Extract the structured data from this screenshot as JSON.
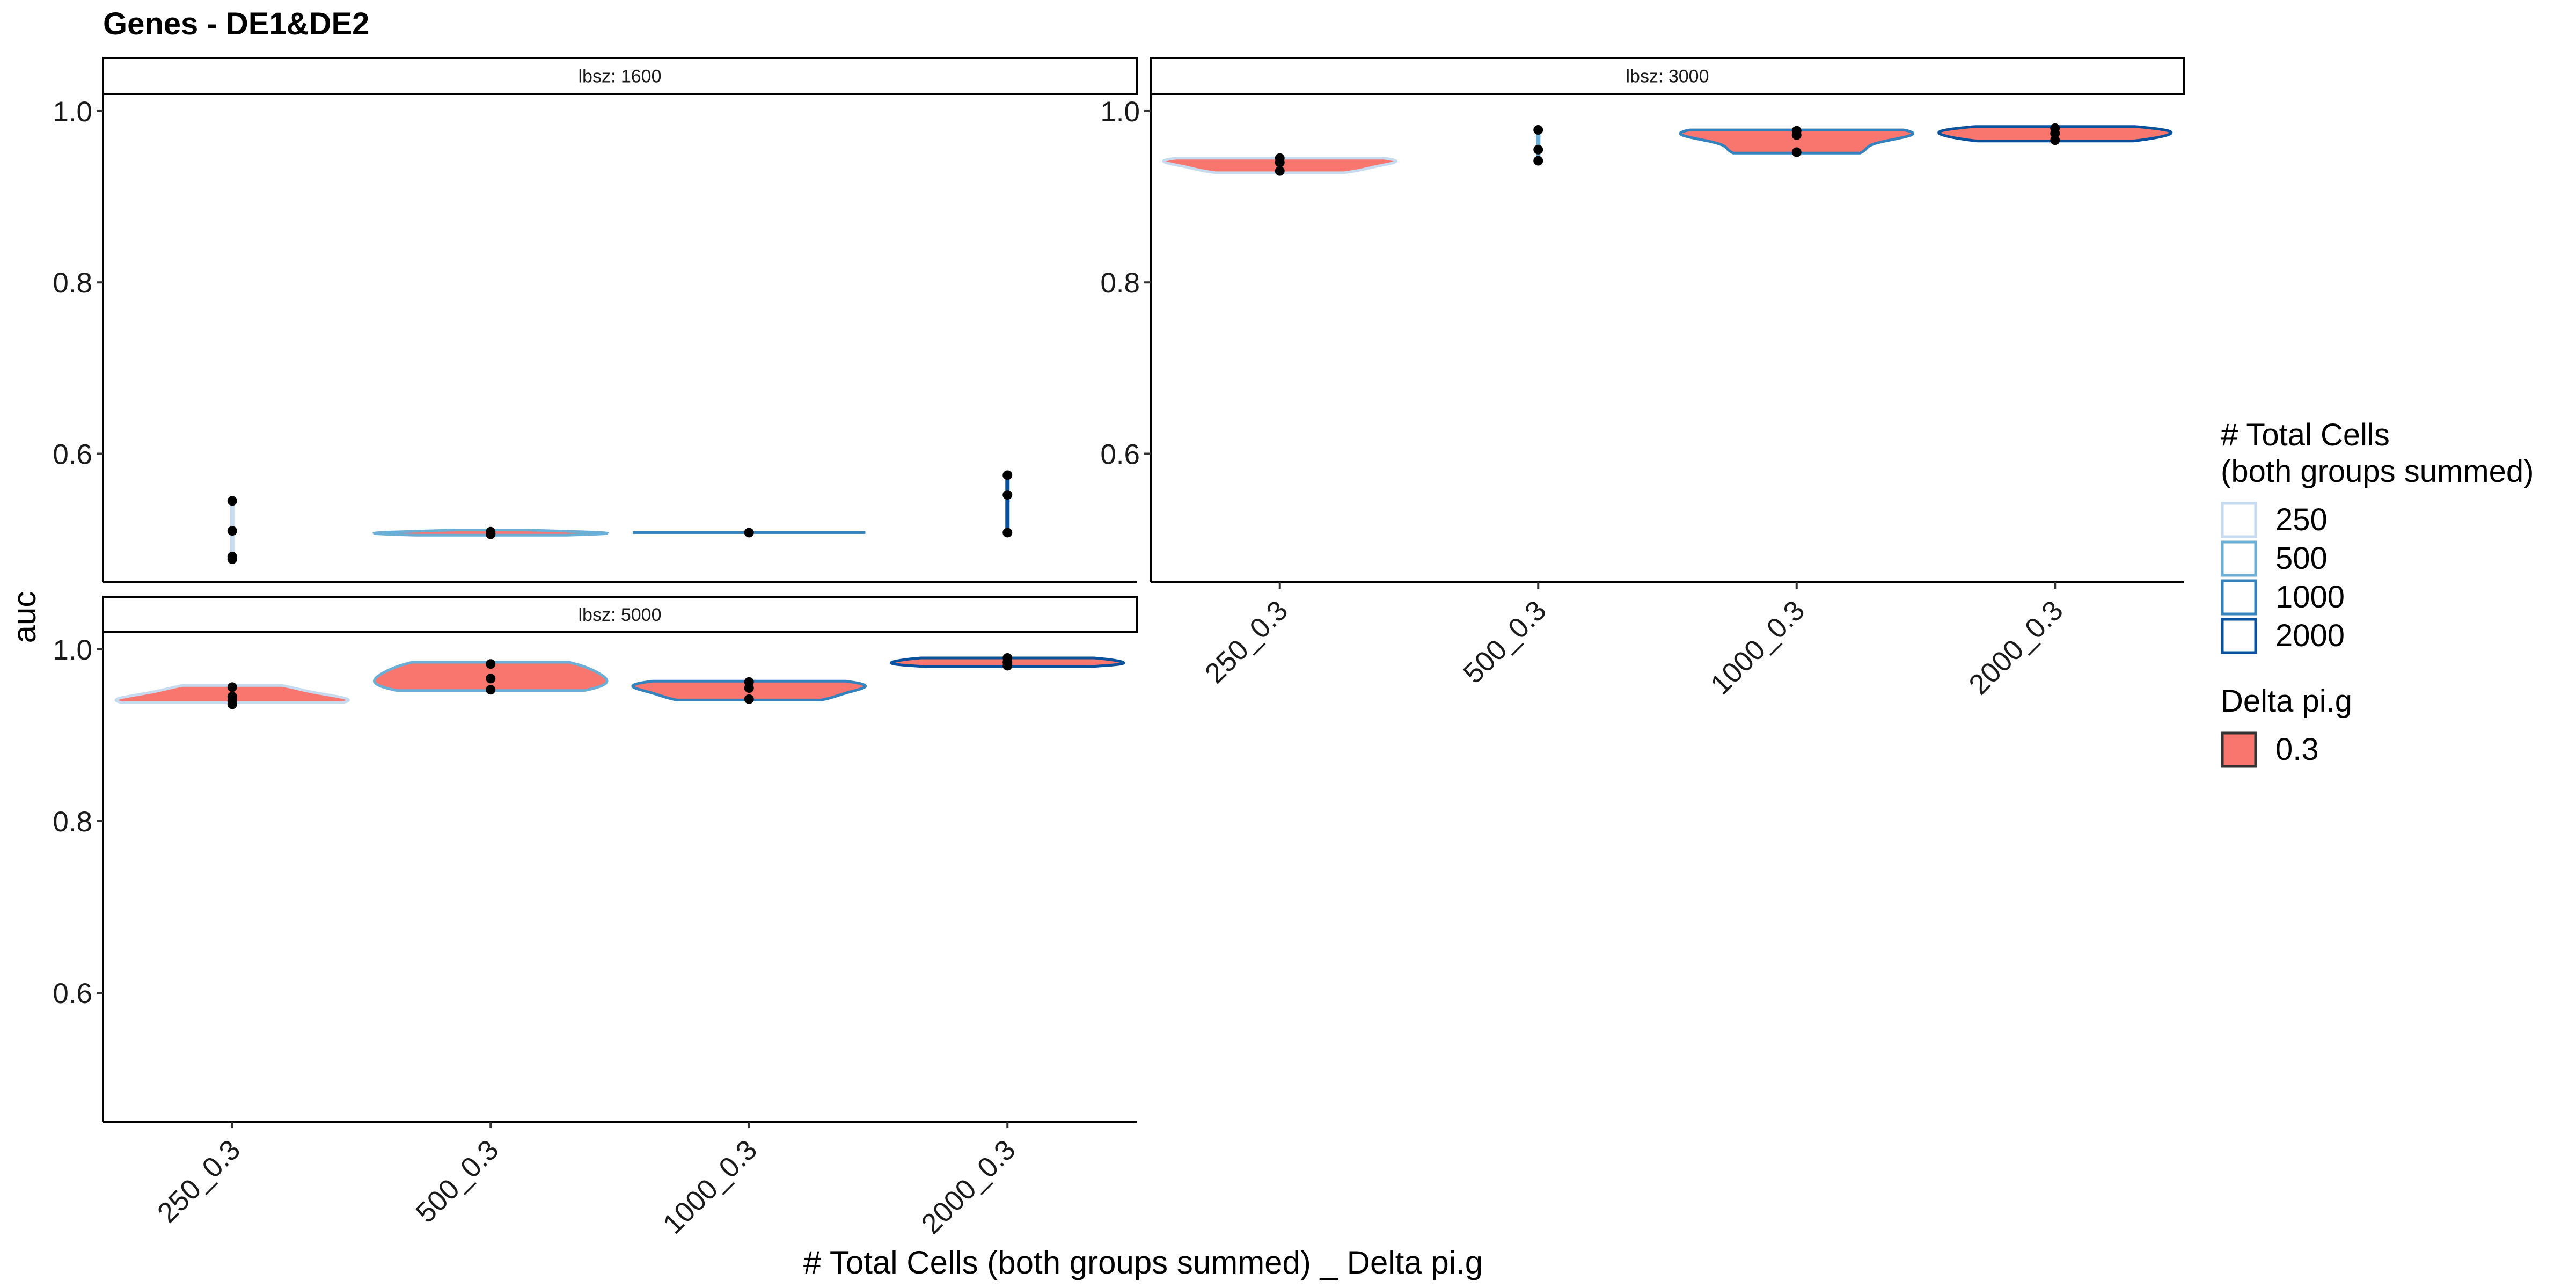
{
  "chart_data": {
    "type": "violin",
    "title": "Genes - DE1&DE2",
    "xlabel": "# Total Cells (both groups summed) _ Delta pi.g",
    "ylabel": "auc",
    "categories": [
      "250_0.3",
      "500_0.3",
      "1000_0.3",
      "2000_0.3"
    ],
    "yticks": [
      0.6,
      0.8,
      1.0
    ],
    "ytick_labels": [
      "0.6",
      "0.8",
      "1.0"
    ],
    "ylim": [
      0.45,
      1.02
    ],
    "panels": [
      {
        "label": "lbsz: 1600",
        "groups": [
          {
            "category": "250_0.3",
            "violin_y": [
              0.48,
              0.545
            ],
            "points": [
              0.545,
              0.51,
              0.48,
              0.477
            ]
          },
          {
            "category": "500_0.3",
            "violin_y": [
              0.505,
              0.511
            ],
            "points": [
              0.509,
              0.507,
              0.506
            ]
          },
          {
            "category": "1000_0.3",
            "violin_y": [
              0.508,
              0.508
            ],
            "points": [
              0.508
            ]
          },
          {
            "category": "2000_0.3",
            "violin_y": [
              0.506,
              0.575
            ],
            "points": [
              0.575,
              0.552,
              0.508
            ]
          }
        ]
      },
      {
        "label": "lbsz: 3000",
        "groups": [
          {
            "category": "250_0.3",
            "violin_y": [
              0.928,
              0.945
            ],
            "points": [
              0.945,
              0.94,
              0.93
            ]
          },
          {
            "category": "500_0.3",
            "violin_y": [
              0.94,
              0.98
            ],
            "points": [
              0.978,
              0.955,
              0.942
            ]
          },
          {
            "category": "1000_0.3",
            "violin_y": [
              0.951,
              0.978
            ],
            "points": [
              0.977,
              0.972,
              0.952
            ]
          },
          {
            "category": "2000_0.3",
            "violin_y": [
              0.965,
              0.982
            ],
            "points": [
              0.98,
              0.974,
              0.966
            ]
          }
        ]
      },
      {
        "label": "lbsz: 5000",
        "groups": [
          {
            "category": "250_0.3",
            "violin_y": [
              0.938,
              0.958
            ],
            "points": [
              0.956,
              0.945,
              0.94,
              0.936
            ]
          },
          {
            "category": "500_0.3",
            "violin_y": [
              0.952,
              0.985
            ],
            "points": [
              0.983,
              0.966,
              0.953
            ]
          },
          {
            "category": "1000_0.3",
            "violin_y": [
              0.941,
              0.963
            ],
            "points": [
              0.962,
              0.955,
              0.942
            ]
          },
          {
            "category": "2000_0.3",
            "violin_y": [
              0.98,
              0.99
            ],
            "points": [
              0.99,
              0.985,
              0.981
            ]
          }
        ]
      }
    ],
    "legend": [
      {
        "title": "# Total Cells\n(both groups summed)",
        "entries": [
          {
            "label": "250",
            "color": "#c6dbef"
          },
          {
            "label": "500",
            "color": "#6baed6"
          },
          {
            "label": "1000",
            "color": "#3182bd"
          },
          {
            "label": "2000",
            "color": "#08519c"
          }
        ]
      },
      {
        "title": "Delta pi.g",
        "entries": [
          {
            "label": "0.3",
            "color": "#f8766d"
          }
        ]
      }
    ],
    "legend_position": "right",
    "grid": false
  }
}
